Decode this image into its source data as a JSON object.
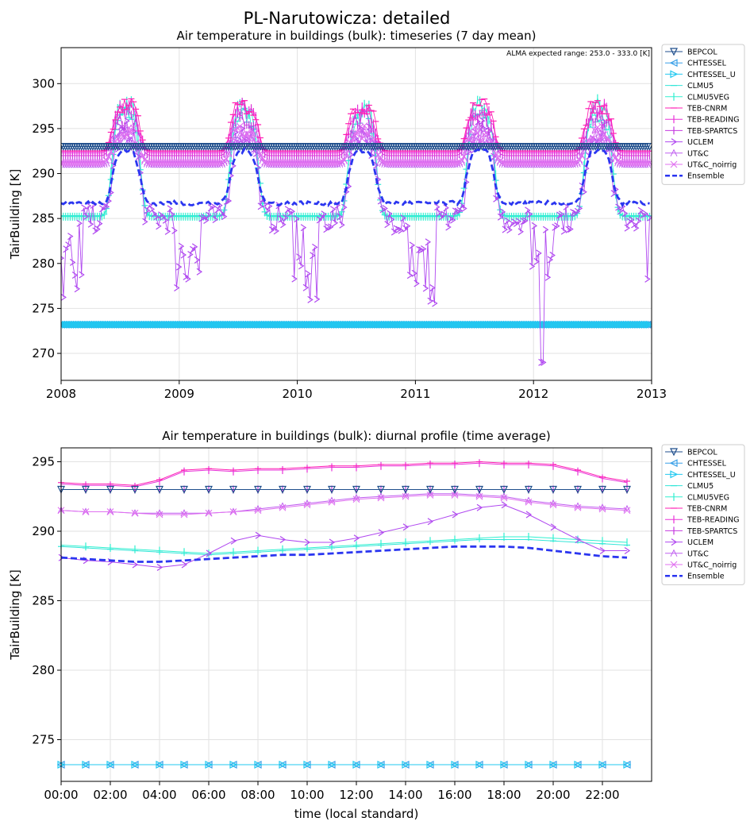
{
  "figure": {
    "suptitle": "PL-Narutowicza: detailed"
  },
  "legend_labels": [
    "BEPCOL",
    "CHTESSEL",
    "CHTESSEL_U",
    "CLMU5",
    "CLMU5VEG",
    "TEB-CNRM",
    "TEB-READING",
    "TEB-SPARTCS",
    "UCLEM",
    "UT&C",
    "UT&C_noirrig",
    "Ensemble"
  ],
  "colors": {
    "BEPCOL": "#1f4e8c",
    "CHTESSEL": "#3aa0e8",
    "CHTESSEL_U": "#22c8f0",
    "CLMU5": "#33e6d8",
    "CLMU5VEG": "#30f0d0",
    "TEB-CNRM": "#ff1fb4",
    "TEB-READING": "#e832d8",
    "TEB-SPARTCS": "#c43ae0",
    "UCLEM": "#b048f0",
    "UT&C": "#c060f0",
    "UT&C_noirrig": "#e070f0",
    "Ensemble": "#2b36f0"
  },
  "chart_data": [
    {
      "type": "line",
      "title": "Air temperature in buildings (bulk): timeseries (7 day mean)",
      "annotation": "ALMA expected range: 253.0 - 333.0 [K]",
      "ylabel": "TairBuilding [K]",
      "xlabel": "",
      "x_ticks": [
        "2008",
        "2009",
        "2010",
        "2011",
        "2012",
        "2013"
      ],
      "y_ticks": [
        270,
        275,
        280,
        285,
        290,
        295,
        300
      ],
      "xlim": [
        2008,
        2013
      ],
      "ylim": [
        267,
        304
      ],
      "grid": true,
      "legend": "outside-right",
      "seasonal_series": [
        {
          "name": "BEPCOL",
          "winter": 293.0,
          "summer": 293.0
        },
        {
          "name": "CHTESSEL",
          "winter": 273.2,
          "summer": 273.2
        },
        {
          "name": "CHTESSEL_U",
          "winter": 273.2,
          "summer": 273.2
        },
        {
          "name": "CLMU5",
          "winter": 285.3,
          "summer": 296.5
        },
        {
          "name": "CLMU5VEG",
          "winter": 285.2,
          "summer": 297.5
        },
        {
          "name": "TEB-CNRM",
          "winter": 292.5,
          "summer": 297.5
        },
        {
          "name": "TEB-READING",
          "winter": 292.3,
          "summer": 297.0
        },
        {
          "name": "TEB-SPARTCS",
          "winter": 292.0,
          "summer": 296.0
        },
        {
          "name": "UCLEM",
          "winter": 285.0,
          "summer": 294.5
        },
        {
          "name": "UT&C",
          "winter": 291.0,
          "summer": 294.0
        },
        {
          "name": "UT&C_noirrig",
          "winter": 291.2,
          "summer": 294.5
        },
        {
          "name": "Ensemble",
          "winter": 286.7,
          "summer": 292.5
        }
      ]
    },
    {
      "type": "line",
      "title": "Air temperature in buildings (bulk): diurnal profile (time average)",
      "ylabel": "TairBuilding [K]",
      "xlabel": "time (local standard)",
      "x_ticks": [
        "00:00",
        "02:00",
        "04:00",
        "06:00",
        "08:00",
        "10:00",
        "12:00",
        "14:00",
        "16:00",
        "18:00",
        "20:00",
        "22:00"
      ],
      "y_ticks": [
        275,
        280,
        285,
        290,
        295
      ],
      "xlim": [
        0,
        24
      ],
      "ylim": [
        272,
        296
      ],
      "grid": true,
      "legend": "outside-right",
      "hours": [
        0,
        1,
        2,
        3,
        4,
        5,
        6,
        7,
        8,
        9,
        10,
        11,
        12,
        13,
        14,
        15,
        16,
        17,
        18,
        19,
        20,
        21,
        22,
        23
      ],
      "series": [
        {
          "name": "BEPCOL",
          "values": [
            293.0,
            293.0,
            293.0,
            293.0,
            293.0,
            293.0,
            293.0,
            293.0,
            293.0,
            293.0,
            293.0,
            293.0,
            293.0,
            293.0,
            293.0,
            293.0,
            293.0,
            293.0,
            293.0,
            293.0,
            293.0,
            293.0,
            293.0,
            293.0
          ]
        },
        {
          "name": "CHTESSEL",
          "values": [
            273.2,
            273.2,
            273.2,
            273.2,
            273.2,
            273.2,
            273.2,
            273.2,
            273.2,
            273.2,
            273.2,
            273.2,
            273.2,
            273.2,
            273.2,
            273.2,
            273.2,
            273.2,
            273.2,
            273.2,
            273.2,
            273.2,
            273.2,
            273.2
          ]
        },
        {
          "name": "CHTESSEL_U",
          "values": [
            273.2,
            273.2,
            273.2,
            273.2,
            273.2,
            273.2,
            273.2,
            273.2,
            273.2,
            273.2,
            273.2,
            273.2,
            273.2,
            273.2,
            273.2,
            273.2,
            273.2,
            273.2,
            273.2,
            273.2,
            273.2,
            273.2,
            273.2,
            273.2
          ]
        },
        {
          "name": "CLMU5",
          "values": [
            288.9,
            288.8,
            288.7,
            288.6,
            288.5,
            288.4,
            288.3,
            288.4,
            288.5,
            288.6,
            288.7,
            288.8,
            288.9,
            289.0,
            289.1,
            289.2,
            289.3,
            289.4,
            289.4,
            289.4,
            289.3,
            289.2,
            289.1,
            289.0
          ]
        },
        {
          "name": "CLMU5VEG",
          "values": [
            289.0,
            288.9,
            288.8,
            288.7,
            288.6,
            288.5,
            288.4,
            288.5,
            288.6,
            288.7,
            288.8,
            288.9,
            289.0,
            289.1,
            289.2,
            289.3,
            289.4,
            289.5,
            289.6,
            289.6,
            289.5,
            289.4,
            289.3,
            289.2
          ]
        },
        {
          "name": "TEB-CNRM",
          "values": [
            293.5,
            293.4,
            293.4,
            293.3,
            293.7,
            294.4,
            294.5,
            294.4,
            294.5,
            294.5,
            294.6,
            294.7,
            294.7,
            294.8,
            294.8,
            294.9,
            294.9,
            295.0,
            294.9,
            294.9,
            294.8,
            294.4,
            293.9,
            293.6
          ]
        },
        {
          "name": "TEB-READING",
          "values": [
            293.4,
            293.3,
            293.3,
            293.2,
            293.6,
            294.3,
            294.4,
            294.3,
            294.4,
            294.4,
            294.5,
            294.6,
            294.6,
            294.7,
            294.7,
            294.8,
            294.8,
            294.9,
            294.8,
            294.8,
            294.7,
            294.3,
            293.8,
            293.5
          ]
        },
        {
          "name": "TEB-SPARTCS",
          "values": [
            293.0,
            293.0,
            293.0,
            293.0,
            293.0,
            293.0,
            293.0,
            293.0,
            293.0,
            293.0,
            293.0,
            293.0,
            293.0,
            293.0,
            293.0,
            293.0,
            293.0,
            293.0,
            293.0,
            293.0,
            293.0,
            293.0,
            293.0,
            293.0
          ]
        },
        {
          "name": "UCLEM",
          "values": [
            288.1,
            287.9,
            287.8,
            287.6,
            287.4,
            287.6,
            288.4,
            289.3,
            289.7,
            289.4,
            289.2,
            289.2,
            289.5,
            289.9,
            290.3,
            290.7,
            291.2,
            291.7,
            291.9,
            291.2,
            290.3,
            289.4,
            288.6,
            288.6
          ]
        },
        {
          "name": "UT&C",
          "values": [
            291.5,
            291.4,
            291.4,
            291.3,
            291.3,
            291.3,
            291.3,
            291.4,
            291.6,
            291.8,
            292.0,
            292.2,
            292.4,
            292.5,
            292.6,
            292.7,
            292.7,
            292.6,
            292.5,
            292.2,
            292.0,
            291.8,
            291.7,
            291.6
          ]
        },
        {
          "name": "UT&C_noirrig",
          "values": [
            291.5,
            291.4,
            291.4,
            291.3,
            291.2,
            291.2,
            291.3,
            291.4,
            291.5,
            291.7,
            291.9,
            292.1,
            292.3,
            292.4,
            292.5,
            292.6,
            292.6,
            292.5,
            292.4,
            292.1,
            291.9,
            291.7,
            291.6,
            291.5
          ]
        },
        {
          "name": "Ensemble",
          "values": [
            288.1,
            288.0,
            287.9,
            287.8,
            287.8,
            287.9,
            288.0,
            288.1,
            288.2,
            288.3,
            288.3,
            288.4,
            288.5,
            288.6,
            288.7,
            288.8,
            288.9,
            288.9,
            288.9,
            288.8,
            288.6,
            288.4,
            288.2,
            288.1
          ]
        }
      ]
    }
  ]
}
